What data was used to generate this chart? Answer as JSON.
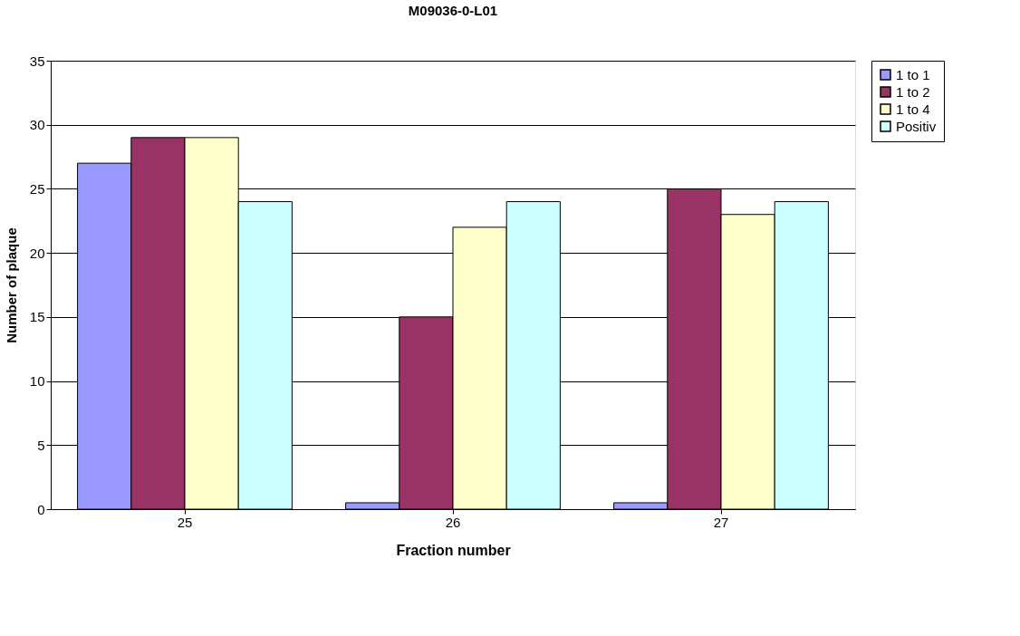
{
  "chart_data": {
    "type": "bar",
    "title": "M09036-0-L01",
    "xlabel": "Fraction number",
    "ylabel": "Number of plaque",
    "categories": [
      "25",
      "26",
      "27"
    ],
    "series": [
      {
        "name": "1 to 1",
        "color": "#9999ff",
        "values": [
          27,
          0.5,
          0.5
        ]
      },
      {
        "name": "1 to 2",
        "color": "#993366",
        "values": [
          29,
          15,
          25
        ]
      },
      {
        "name": "1 to 4",
        "color": "#ffffcc",
        "values": [
          29,
          22,
          23
        ]
      },
      {
        "name": "Positiv",
        "color": "#ccffff",
        "values": [
          24,
          24,
          24
        ]
      }
    ],
    "ylim": [
      0,
      35
    ],
    "yticks": [
      0,
      5,
      10,
      15,
      20,
      25,
      30,
      35
    ],
    "grid": "y",
    "legend": "right"
  }
}
